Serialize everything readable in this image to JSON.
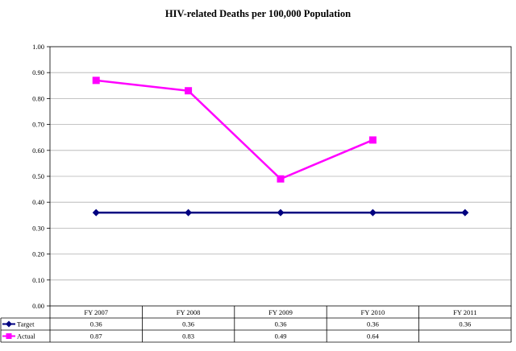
{
  "chart_data": {
    "type": "line",
    "title": "HIV-related Deaths per 100,000 Population",
    "xlabel": "",
    "ylabel": "",
    "categories": [
      "FY 2007",
      "FY 2008",
      "FY 2009",
      "FY 2010",
      "FY 2011"
    ],
    "y_ticks": [
      "0.00",
      "0.10",
      "0.20",
      "0.30",
      "0.40",
      "0.50",
      "0.60",
      "0.70",
      "0.80",
      "0.90",
      "1.00"
    ],
    "ylim": [
      0,
      1
    ],
    "grid": true,
    "legend": "data-table",
    "series": [
      {
        "name": "Target",
        "color": "#000080",
        "marker": "diamond",
        "values": [
          0.36,
          0.36,
          0.36,
          0.36,
          0.36
        ],
        "labels": [
          "0.36",
          "0.36",
          "0.36",
          "0.36",
          "0.36"
        ]
      },
      {
        "name": "Actual",
        "color": "#FF00FF",
        "marker": "square",
        "values": [
          0.87,
          0.83,
          0.49,
          0.64,
          null
        ],
        "labels": [
          "0.87",
          "0.83",
          "0.49",
          "0.64",
          ""
        ]
      }
    ]
  }
}
